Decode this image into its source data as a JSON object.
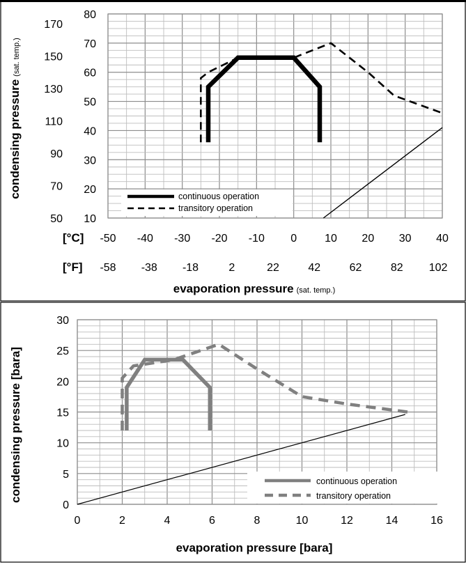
{
  "chart_data": [
    {
      "type": "line",
      "xlabel": "evaporation pressure",
      "xlabel_note": "(sat. temp.)",
      "ylabel": "condensing pressure",
      "ylabel_note": "(sat. temp.)",
      "x_unit_c": "[°C]",
      "x_unit_f": "[°F]",
      "x_ticks_c": [
        "-50",
        "-40",
        "-30",
        "-20",
        "-10",
        "0",
        "10",
        "20",
        "30",
        "40"
      ],
      "x_ticks_f": [
        "-58",
        "-38",
        "-18",
        "2",
        "22",
        "42",
        "62",
        "82",
        "102"
      ],
      "y_ticks_c": [
        "10",
        "20",
        "30",
        "40",
        "50",
        "60",
        "70",
        "80"
      ],
      "y_ticks_f": [
        "50",
        "70",
        "90",
        "110",
        "130",
        "150",
        "170"
      ],
      "xlim": [
        -50,
        40
      ],
      "ylim": [
        10,
        80
      ],
      "grid": true,
      "legend_position": "bottom-left",
      "series": [
        {
          "name": "continuous operation",
          "style": "solid-thick",
          "color": "#000000",
          "x": [
            -23,
            -23,
            -15,
            0,
            7,
            7
          ],
          "y": [
            36,
            55,
            65,
            65,
            55,
            36
          ]
        },
        {
          "name": "transitory operation",
          "style": "dashed",
          "color": "#000000",
          "x": [
            -25,
            -25,
            -23,
            -15,
            0,
            10,
            20,
            27,
            40
          ],
          "y": [
            36,
            58,
            60,
            65,
            65,
            70,
            60,
            52,
            46
          ]
        },
        {
          "name": "",
          "style": "solid-thin",
          "color": "#000000",
          "x": [
            8,
            40
          ],
          "y": [
            10,
            41
          ]
        }
      ]
    },
    {
      "type": "line",
      "xlabel": "evaporation pressure [bara]",
      "ylabel": "condensing pressure [bara]",
      "x_ticks": [
        "0",
        "2",
        "4",
        "6",
        "8",
        "10",
        "12",
        "14",
        "16"
      ],
      "y_ticks": [
        "0",
        "5",
        "10",
        "15",
        "20",
        "25",
        "30"
      ],
      "xlim": [
        0,
        16
      ],
      "ylim": [
        0,
        30
      ],
      "grid": true,
      "legend_position": "bottom-right",
      "series": [
        {
          "name": "continuous operation",
          "style": "solid-thick",
          "color": "#808080",
          "x": [
            2.2,
            2.2,
            3,
            4.7,
            5.9,
            5.9
          ],
          "y": [
            12,
            19,
            23.5,
            23.5,
            19,
            12
          ]
        },
        {
          "name": "transitory operation",
          "style": "dashed",
          "color": "#808080",
          "x": [
            2,
            2,
            2.5,
            4.3,
            6.3,
            8,
            10,
            12,
            14.7
          ],
          "y": [
            12,
            20.5,
            22.5,
            23.5,
            26,
            22,
            17.5,
            16.3,
            15
          ]
        },
        {
          "name": "",
          "style": "solid-thin",
          "color": "#000000",
          "x": [
            0,
            14.6
          ],
          "y": [
            0,
            14.6
          ]
        }
      ]
    }
  ]
}
